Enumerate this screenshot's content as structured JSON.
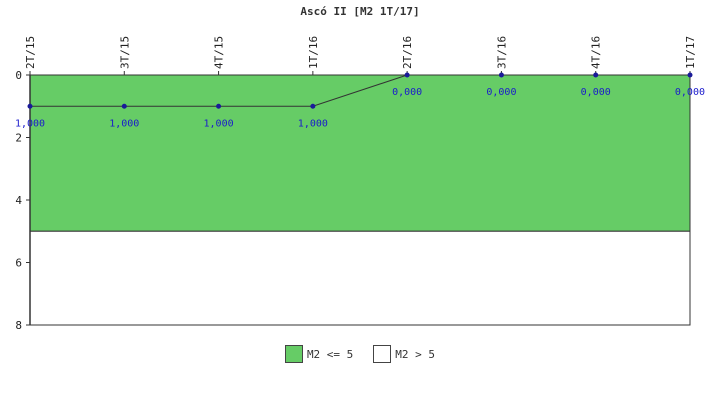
{
  "chart_data": {
    "type": "line",
    "title": "Ascó II [M2 1T/17]",
    "categories": [
      "2T/15",
      "3T/15",
      "4T/15",
      "1T/16",
      "2T/16",
      "3T/16",
      "4T/16",
      "1T/17"
    ],
    "series": [
      {
        "values": [
          1,
          1,
          1,
          1,
          0,
          0,
          0,
          0
        ],
        "labels": [
          "1,000",
          "1,000",
          "1,000",
          "1,000",
          "0,000",
          "0,000",
          "0,000",
          "0,000"
        ]
      }
    ],
    "ylim": [
      0,
      8
    ],
    "y_inverted": true,
    "yticks": [
      0,
      2,
      4,
      6,
      8
    ],
    "bands": [
      {
        "name": "M2 <= 5",
        "from": 0,
        "to": 5,
        "color": "#66cc66"
      },
      {
        "name": "M2 > 5",
        "from": 5,
        "to": 8,
        "color": "#ffffff"
      }
    ],
    "line_color": "#333333",
    "marker_color": "#1a1a99",
    "label_color": "#1a1acc",
    "grid": false,
    "legend_position": "bottom"
  }
}
